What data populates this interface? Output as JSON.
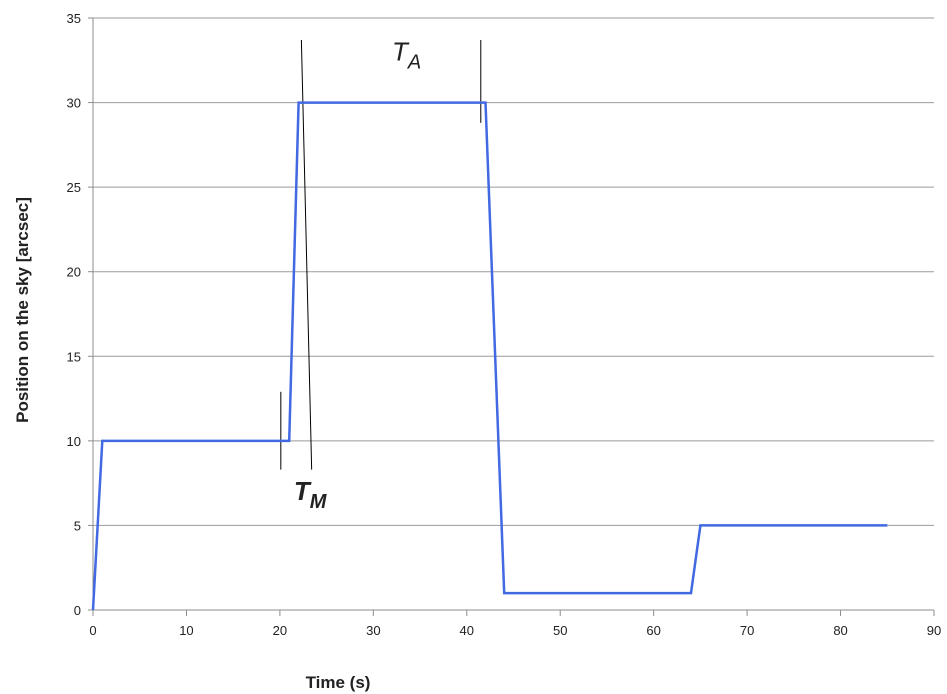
{
  "chart_data": {
    "type": "line",
    "xlabel": "Time (s)",
    "ylabel": "Position on the sky [arcsec]",
    "xlim": [
      0,
      90
    ],
    "ylim": [
      0,
      35
    ],
    "xticks": [
      0,
      10,
      20,
      30,
      40,
      50,
      60,
      70,
      80,
      90
    ],
    "yticks": [
      0,
      5,
      10,
      15,
      20,
      25,
      30,
      35
    ],
    "grid": "horizontal",
    "series": [
      {
        "color": "#4169e1",
        "points": [
          [
            0,
            0
          ],
          [
            1,
            10
          ],
          [
            21,
            10
          ],
          [
            22,
            30
          ],
          [
            42,
            30
          ],
          [
            44,
            1
          ],
          [
            64,
            1
          ],
          [
            65,
            5
          ],
          [
            85,
            5
          ]
        ]
      }
    ],
    "annotations": [
      {
        "label_main": "T",
        "label_sub": "A",
        "bold": false,
        "x": 32,
        "y": 32.5
      },
      {
        "label_main": "T",
        "label_sub": "M",
        "bold": true,
        "x": 21.5,
        "y": 6.5
      }
    ],
    "marker_lines": [
      {
        "x1": 20.1,
        "y1": 12.9,
        "x2": 20.1,
        "y2": 8.3
      },
      {
        "x1": 22.3,
        "y1": 33.7,
        "x2": 23.4,
        "y2": 8.3
      },
      {
        "x1": 41.5,
        "y1": 33.7,
        "x2": 41.5,
        "y2": 28.8
      }
    ],
    "colors": {
      "grid": "#9a9a9a",
      "axis": "#8c8c8c",
      "marker": "#000000"
    }
  }
}
